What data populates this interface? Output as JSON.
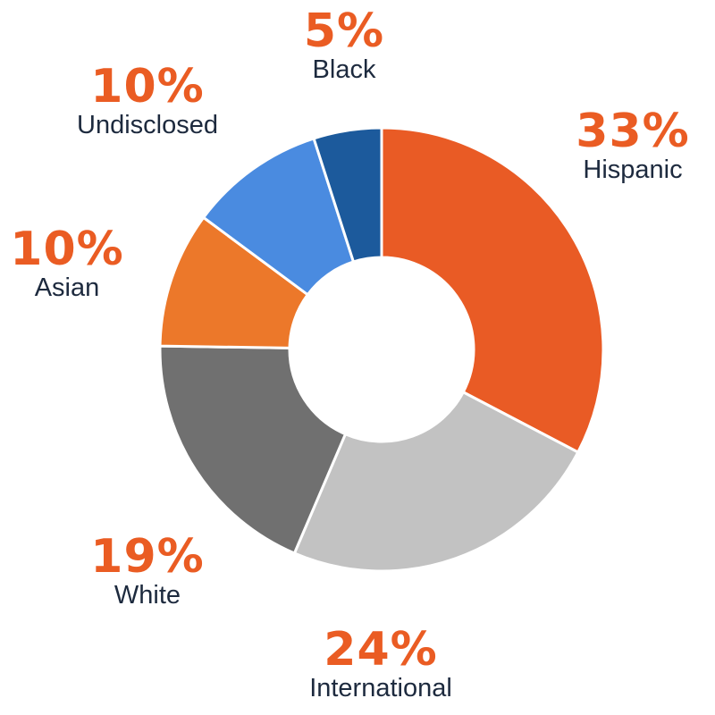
{
  "chart_data": {
    "type": "pie",
    "donut": true,
    "start": "top",
    "direction": "clockwise",
    "legend": "none",
    "slices": [
      {
        "label": "Hispanic",
        "value": 33,
        "display": "33%",
        "color": "#e95b25"
      },
      {
        "label": "International",
        "value": 24,
        "display": "24%",
        "color": "#c2c2c2"
      },
      {
        "label": "White",
        "value": 19,
        "display": "19%",
        "color": "#707070"
      },
      {
        "label": "Asian",
        "value": 10,
        "display": "10%",
        "color": "#ec782a"
      },
      {
        "label": "Undisclosed",
        "value": 10,
        "display": "10%",
        "color": "#4a8be0"
      },
      {
        "label": "Black",
        "value": 5,
        "display": "5%",
        "color": "#1c5a9c"
      }
    ]
  },
  "colors": {
    "percent_text": "#ea5c23",
    "label_text": "#1d2a3e"
  }
}
